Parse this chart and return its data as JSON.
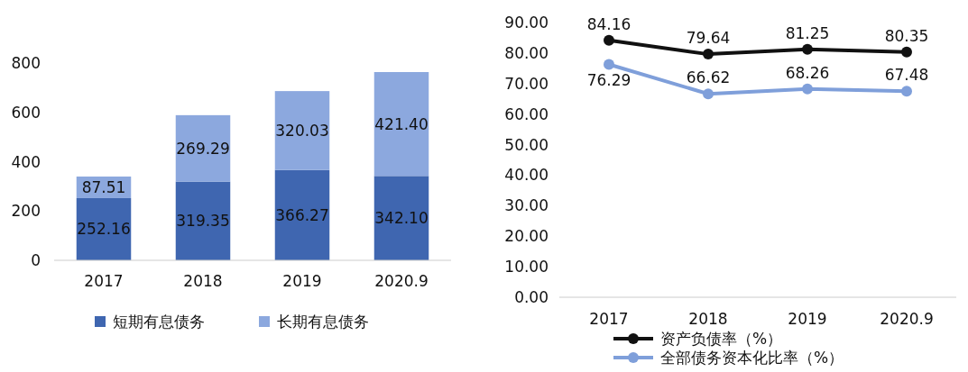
{
  "chart_data": [
    {
      "type": "bar",
      "stacked": true,
      "categories": [
        "2017",
        "2018",
        "2019",
        "2020.9"
      ],
      "ylim": [
        0,
        800
      ],
      "yticks": [
        0,
        200,
        400,
        600,
        800
      ],
      "legend": "bottom",
      "grid": false,
      "series": [
        {
          "name": "短期有息债务",
          "color": "#3f66b0",
          "values": [
            252.16,
            319.35,
            366.27,
            342.1
          ],
          "value_labels": [
            "252.16",
            "319.35",
            "366.27",
            "342.10"
          ]
        },
        {
          "name": "长期有息债务",
          "color": "#8ca8de",
          "values": [
            87.51,
            269.29,
            320.03,
            421.4
          ],
          "value_labels": [
            "87.51",
            "269.29",
            "320.03",
            "421.40"
          ]
        }
      ]
    },
    {
      "type": "line",
      "categories": [
        "2017",
        "2018",
        "2019",
        "2020.9"
      ],
      "ylim": [
        0,
        90
      ],
      "yticks": [
        {
          "value": 0,
          "label": "0.00"
        },
        {
          "value": 10,
          "label": "10.00"
        },
        {
          "value": 20,
          "label": "20.00"
        },
        {
          "value": 30,
          "label": "30.00"
        },
        {
          "value": 40,
          "label": "40.00"
        },
        {
          "value": 50,
          "label": "50.00"
        },
        {
          "value": 60,
          "label": "60.00"
        },
        {
          "value": 70,
          "label": "70.00"
        },
        {
          "value": 80,
          "label": "80.00"
        },
        {
          "value": 90,
          "label": "90.00"
        }
      ],
      "legend": "bottom",
      "grid": false,
      "marker": "circle",
      "line_style": "solid",
      "series": [
        {
          "name": "资产负债率（%）",
          "color": "#111111",
          "values": [
            84.16,
            79.64,
            81.25,
            80.35
          ],
          "value_labels": [
            "84.16",
            "79.64",
            "81.25",
            "80.35"
          ]
        },
        {
          "name": "全部债务资本化比率（%）",
          "color": "#7f9fda",
          "values": [
            76.29,
            66.62,
            68.26,
            67.48
          ],
          "value_labels": [
            "76.29",
            "66.62",
            "68.26",
            "67.48"
          ]
        }
      ]
    }
  ]
}
